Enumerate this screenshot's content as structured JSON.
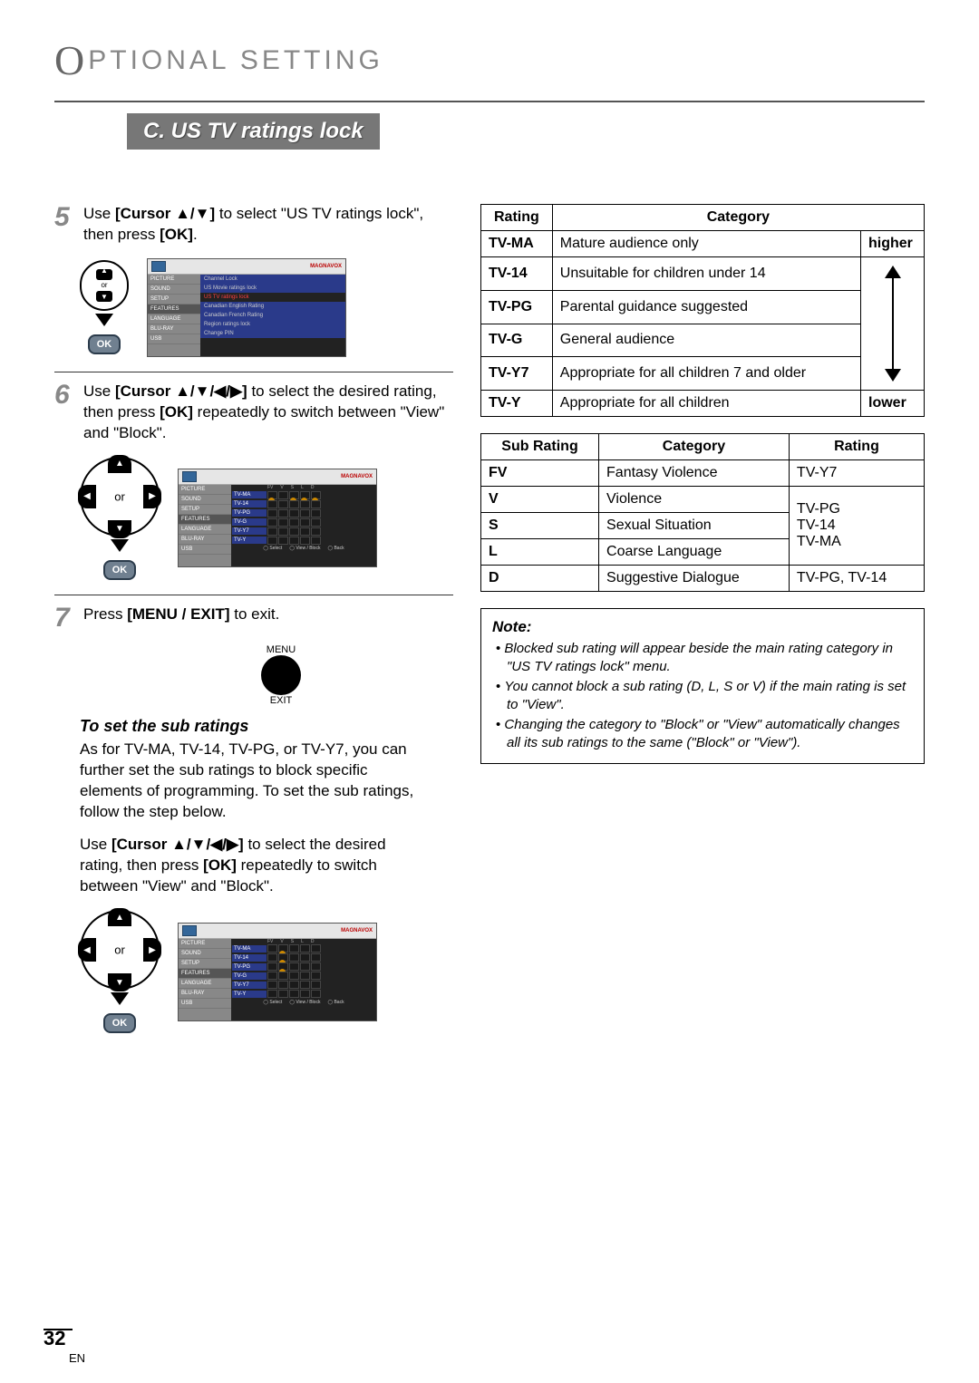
{
  "header": {
    "prefix_o": "O",
    "title_rest": "PTIONAL  SETTING"
  },
  "section_bar": "C.  US TV ratings lock",
  "steps": {
    "s5": {
      "num": "5",
      "text_before": "Use ",
      "bold1": "[Cursor ▲/▼]",
      "text_mid": " to select \"US TV ratings lock\", then press ",
      "bold2": "[OK]",
      "text_after": "."
    },
    "s6": {
      "num": "6",
      "text_before": "Use ",
      "bold1": "[Cursor ▲/▼/◀/▶]",
      "text_mid": " to select the desired rating, then press ",
      "bold2": "[OK]",
      "text_after": " repeatedly to switch between \"View\" and \"Block\"."
    },
    "s7": {
      "num": "7",
      "text_before": "Press ",
      "bold1": "[MENU / EXIT]",
      "text_after": " to exit."
    }
  },
  "remote": {
    "or": "or",
    "ok": "OK",
    "menu": "MENU",
    "exit": "EXIT"
  },
  "screen_menu_items": [
    "PICTURE",
    "SOUND",
    "SETUP",
    "FEATURES",
    "LANGUAGE",
    "BLU-RAY",
    "USB"
  ],
  "screen1_items": [
    "Channel Lock",
    "US Movie ratings lock",
    "US TV ratings lock",
    "Canadian English Rating",
    "Canadian French Rating",
    "Region ratings lock",
    "Change PIN"
  ],
  "screen_brand": "MAGNAVOX",
  "screen_grid_headers": [
    "FV",
    "V",
    "S",
    "L",
    "D"
  ],
  "screen_grid_rows": [
    "TV-MA",
    "TV-14",
    "TV-PG",
    "TV-G",
    "TV-Y7",
    "TV-Y"
  ],
  "screen_footer": {
    "select": "Select",
    "viewblock": "View / Block",
    "back": "Back"
  },
  "sub_head": "To set the sub ratings",
  "sub_body1": "As for TV-MA, TV-14, TV-PG, or TV-Y7, you can further set the sub ratings to block specific elements of programming. To set the sub ratings, follow the step below.",
  "sub_body2_before": "Use ",
  "sub_body2_bold1": "[Cursor ▲/▼/◀/▶]",
  "sub_body2_mid": " to select the desired rating, then press ",
  "sub_body2_bold2": "[OK]",
  "sub_body2_after": " repeatedly to switch between \"View\" and \"Block\".",
  "table1": {
    "headers": [
      "Rating",
      "Category",
      ""
    ],
    "arrow_top": "higher",
    "arrow_bottom": "lower",
    "rows": [
      {
        "rating": "TV-MA",
        "cat": "Mature audience only"
      },
      {
        "rating": "TV-14",
        "cat": "Unsuitable for children under 14"
      },
      {
        "rating": "TV-PG",
        "cat": "Parental guidance suggested"
      },
      {
        "rating": "TV-G",
        "cat": "General audience"
      },
      {
        "rating": "TV-Y7",
        "cat": "Appropriate for all children 7 and older"
      },
      {
        "rating": "TV-Y",
        "cat": "Appropriate for all children"
      }
    ]
  },
  "table2": {
    "headers": [
      "Sub Rating",
      "Category",
      "Rating"
    ],
    "rows": [
      {
        "sub": "FV",
        "cat": "Fantasy Violence",
        "rating": "TV-Y7"
      },
      {
        "sub": "V",
        "cat": "Violence",
        "rating_span": true
      },
      {
        "sub": "S",
        "cat": "Sexual Situation"
      },
      {
        "sub": "L",
        "cat": "Coarse Language"
      },
      {
        "sub": "D",
        "cat": "Suggestive Dialogue",
        "rating": "TV-PG, TV-14"
      }
    ],
    "span_rating": "TV-PG\nTV-14\nTV-MA"
  },
  "note": {
    "title": "Note:",
    "items": [
      "Blocked sub rating will appear beside the main rating category in \"US TV ratings lock\" menu.",
      "You cannot block a sub rating (D, L, S or V) if the main rating is set to \"View\".",
      "Changing the category to \"Block\" or \"View\" automatically changes all its sub ratings to the same (\"Block\" or \"View\")."
    ]
  },
  "page_number": "32",
  "page_lang": "EN"
}
